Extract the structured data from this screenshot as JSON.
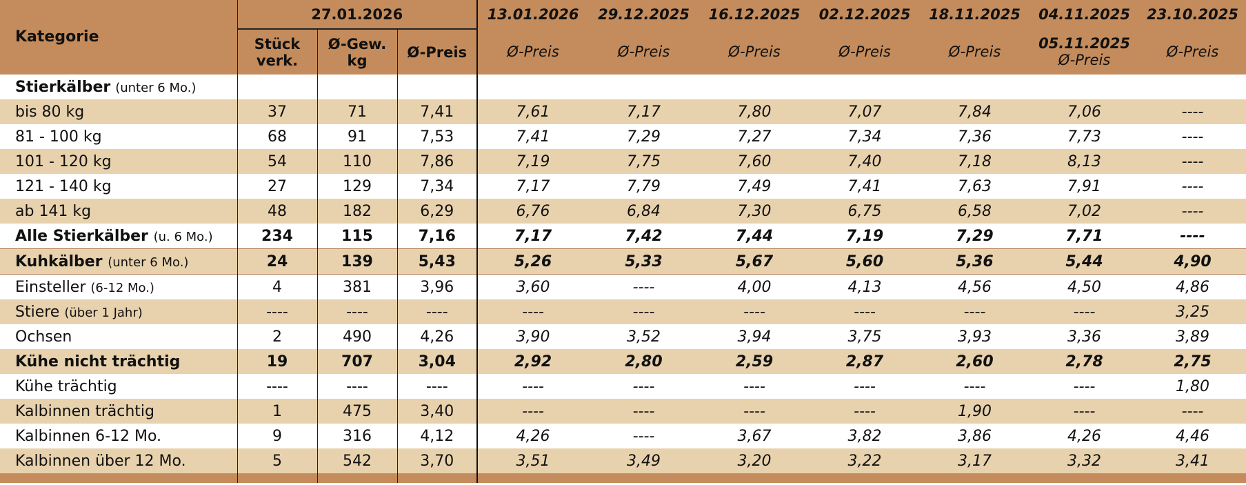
{
  "header": {
    "kategorie": "Kategorie",
    "current_date": "27.01.2026",
    "col_stueck_1": "Stück",
    "col_stueck_2": "verk.",
    "col_gew_1": "Ø-Gew.",
    "col_gew_2": "kg",
    "col_preis": "Ø-Preis",
    "hist_dates": [
      "13.01.2026",
      "29.12.2025",
      "16.12.2025",
      "02.12.2025",
      "18.11.2025",
      "04.11.2025",
      "23.10.2025"
    ],
    "hist_date_extra": "05.11.2025",
    "hist_label": "Ø-Preis"
  },
  "rows": [
    {
      "label": "Stierkälber",
      "note": "(unter 6 Mo.)",
      "values": [
        "",
        "",
        "",
        "",
        "",
        "",
        "",
        "",
        "",
        ""
      ]
    },
    {
      "label": "bis 80 kg",
      "note": "",
      "values": [
        "37",
        "71",
        "7,41",
        "7,61",
        "7,17",
        "7,80",
        "7,07",
        "7,84",
        "7,06",
        "----"
      ]
    },
    {
      "label": "81 - 100 kg",
      "note": "",
      "values": [
        "68",
        "91",
        "7,53",
        "7,41",
        "7,29",
        "7,27",
        "7,34",
        "7,36",
        "7,73",
        "----"
      ]
    },
    {
      "label": "101 - 120 kg",
      "note": "",
      "values": [
        "54",
        "110",
        "7,86",
        "7,19",
        "7,75",
        "7,60",
        "7,40",
        "7,18",
        "8,13",
        "----"
      ]
    },
    {
      "label": "121 - 140 kg",
      "note": "",
      "values": [
        "27",
        "129",
        "7,34",
        "7,17",
        "7,79",
        "7,49",
        "7,41",
        "7,63",
        "7,91",
        "----"
      ]
    },
    {
      "label": "ab 141 kg",
      "note": "",
      "values": [
        "48",
        "182",
        "6,29",
        "6,76",
        "6,84",
        "7,30",
        "6,75",
        "6,58",
        "7,02",
        "----"
      ]
    },
    {
      "label": "Alle Stierkälber",
      "note": "(u. 6 Mo.)",
      "values": [
        "234",
        "115",
        "7,16",
        "7,17",
        "7,42",
        "7,44",
        "7,19",
        "7,29",
        "7,71",
        "----"
      ]
    },
    {
      "label": "Kuhkälber",
      "note": "(unter 6 Mo.)",
      "values": [
        "24",
        "139",
        "5,43",
        "5,26",
        "5,33",
        "5,67",
        "5,60",
        "5,36",
        "5,44",
        "4,90"
      ]
    },
    {
      "label": "Einsteller",
      "note": "(6-12 Mo.)",
      "values": [
        "4",
        "381",
        "3,96",
        "3,60",
        "----",
        "4,00",
        "4,13",
        "4,56",
        "4,50",
        "4,86"
      ]
    },
    {
      "label": "Stiere",
      "note": "(über 1 Jahr)",
      "values": [
        "----",
        "----",
        "----",
        "----",
        "----",
        "----",
        "----",
        "----",
        "----",
        "3,25"
      ]
    },
    {
      "label": "Ochsen",
      "note": "",
      "values": [
        "2",
        "490",
        "4,26",
        "3,90",
        "3,52",
        "3,94",
        "3,75",
        "3,93",
        "3,36",
        "3,89"
      ]
    },
    {
      "label": "Kühe nicht trächtig",
      "note": "",
      "values": [
        "19",
        "707",
        "3,04",
        "2,92",
        "2,80",
        "2,59",
        "2,87",
        "2,60",
        "2,78",
        "2,75"
      ]
    },
    {
      "label": "Kühe trächtig",
      "note": "",
      "values": [
        "----",
        "----",
        "----",
        "----",
        "----",
        "----",
        "----",
        "----",
        "----",
        "1,80"
      ]
    },
    {
      "label": "Kalbinnen trächtig",
      "note": "",
      "values": [
        "1",
        "475",
        "3,40",
        "----",
        "----",
        "----",
        "----",
        "1,90",
        "----",
        "----"
      ]
    },
    {
      "label": "Kalbinnen 6-12 Mo.",
      "note": "",
      "values": [
        "9",
        "316",
        "4,12",
        "4,26",
        "----",
        "3,67",
        "3,82",
        "3,86",
        "4,26",
        "4,46"
      ]
    },
    {
      "label": "Kalbinnen über 12 Mo.",
      "note": "",
      "values": [
        "5",
        "542",
        "3,70",
        "3,51",
        "3,49",
        "3,20",
        "3,22",
        "3,17",
        "3,32",
        "3,41"
      ]
    }
  ]
}
